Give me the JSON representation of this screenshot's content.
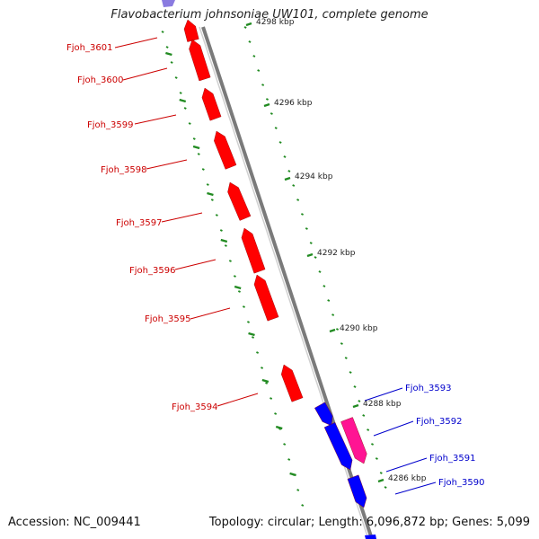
{
  "header": {
    "title": "Flavobacterium johnsoniae UW101, complete genome"
  },
  "footer": {
    "accession": "Accession: NC_009441",
    "summary": "Topology: circular; Length: 6,096,872 bp; Genes: 5,099"
  },
  "colors": {
    "reverse_gene": "#ff0000",
    "forward_gene": "#0000ff",
    "forward_gene_alt": "#ff1493",
    "scale_ticks": "#228b22",
    "backbone": "#7a7a7a",
    "reverse_label": "#cc0000",
    "forward_label": "#0000cc"
  },
  "scale_labels": [
    "4298 kbp",
    "4296 kbp",
    "4294 kbp",
    "4292 kbp",
    "4290 kbp",
    "4288 kbp",
    "4286 kbp"
  ],
  "genes": [
    {
      "name": "Fjoh_3601",
      "strand": "reverse"
    },
    {
      "name": "Fjoh_3600",
      "strand": "reverse"
    },
    {
      "name": "Fjoh_3599",
      "strand": "reverse"
    },
    {
      "name": "Fjoh_3598",
      "strand": "reverse"
    },
    {
      "name": "Fjoh_3597",
      "strand": "reverse"
    },
    {
      "name": "Fjoh_3596",
      "strand": "reverse"
    },
    {
      "name": "Fjoh_3595",
      "strand": "reverse"
    },
    {
      "name": "Fjoh_3594",
      "strand": "reverse"
    },
    {
      "name": "Fjoh_3593",
      "strand": "forward"
    },
    {
      "name": "Fjoh_3592",
      "strand": "forward"
    },
    {
      "name": "Fjoh_3591",
      "strand": "forward"
    },
    {
      "name": "Fjoh_3590",
      "strand": "forward"
    }
  ]
}
